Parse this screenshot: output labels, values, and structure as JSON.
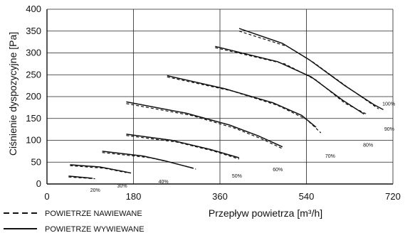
{
  "chart_data": {
    "type": "line",
    "title": "",
    "xlabel": "Przepływ powietrza [m³/h]",
    "ylabel": "Ciśnienie dyspozycyjne [Pa]",
    "xlim": [
      0,
      720
    ],
    "ylim": [
      0,
      400
    ],
    "x_ticks": [
      "0",
      "180",
      "360",
      "540",
      "720"
    ],
    "y_ticks": [
      "0",
      "50",
      "100",
      "150",
      "200",
      "250",
      "300",
      "350",
      "400"
    ],
    "grid": true,
    "legend_placement": "bottom-left",
    "legend": [
      {
        "label": "POWIETRZE NAWIEWANE",
        "style": "dashed"
      },
      {
        "label": "POWIETRZE WYWIEWANE",
        "style": "solid"
      }
    ],
    "series": [
      {
        "label": "20%",
        "solid": [
          [
            45,
            18
          ],
          [
            95,
            13
          ]
        ],
        "dashed": [
          [
            45,
            16
          ],
          [
            100,
            12
          ]
        ],
        "label_at": [
          90,
          -18
        ]
      },
      {
        "label": "30%",
        "solid": [
          [
            48,
            44
          ],
          [
            110,
            39
          ],
          [
            158,
            29
          ],
          [
            175,
            25
          ]
        ],
        "dashed": [
          [
            48,
            42
          ],
          [
            120,
            36
          ],
          [
            165,
            26
          ]
        ],
        "label_at": [
          146,
          -8
        ]
      },
      {
        "label": "40%",
        "solid": [
          [
            115,
            75
          ],
          [
            200,
            64
          ],
          [
            245,
            53
          ],
          [
            305,
            36
          ]
        ],
        "dashed": [
          [
            115,
            72
          ],
          [
            215,
            60
          ],
          [
            260,
            49
          ],
          [
            310,
            34
          ]
        ],
        "label_at": [
          232,
          2
        ]
      },
      {
        "label": "50%",
        "solid": [
          [
            165,
            114
          ],
          [
            260,
            100
          ],
          [
            340,
            79
          ],
          [
            400,
            60
          ]
        ],
        "dashed": [
          [
            165,
            111
          ],
          [
            270,
            96
          ],
          [
            345,
            76
          ],
          [
            400,
            57
          ]
        ],
        "label_at": [
          385,
          15
        ]
      },
      {
        "label": "60%",
        "solid": [
          [
            165,
            188
          ],
          [
            290,
            162
          ],
          [
            380,
            135
          ],
          [
            440,
            110
          ],
          [
            490,
            85
          ]
        ],
        "dashed": [
          [
            165,
            184
          ],
          [
            300,
            157
          ],
          [
            390,
            128
          ],
          [
            445,
            104
          ],
          [
            490,
            81
          ]
        ],
        "label_at": [
          470,
          29
        ]
      },
      {
        "label": "70%",
        "solid": [
          [
            250,
            248
          ],
          [
            370,
            218
          ],
          [
            470,
            186
          ],
          [
            530,
            157
          ],
          [
            560,
            130
          ]
        ],
        "dashed": [
          [
            250,
            245
          ],
          [
            385,
            213
          ],
          [
            480,
            180
          ],
          [
            540,
            148
          ],
          [
            570,
            117
          ]
        ],
        "label_at": [
          579,
          60
        ]
      },
      {
        "label": "80%",
        "solid": [
          [
            350,
            315
          ],
          [
            480,
            280
          ],
          [
            550,
            245
          ],
          [
            615,
            192
          ],
          [
            660,
            160
          ]
        ],
        "dashed": [
          [
            350,
            312
          ],
          [
            495,
            275
          ],
          [
            560,
            238
          ],
          [
            620,
            185
          ],
          [
            665,
            160
          ]
        ],
        "label_at": [
          658,
          85
        ]
      },
      {
        "label": "90%",
        "solid": [
          [
            400,
            356
          ],
          [
            490,
            322
          ],
          [
            545,
            285
          ],
          [
            620,
            225
          ],
          [
            680,
            182
          ],
          [
            700,
            170
          ]
        ],
        "dashed": [
          [
            400,
            350
          ],
          [
            500,
            315
          ],
          [
            555,
            278
          ],
          [
            630,
            218
          ],
          [
            690,
            172
          ]
        ],
        "label_at": [
          702,
          122
        ]
      },
      {
        "label": "100%",
        "solid": [],
        "dashed": [],
        "label_at": [
          698,
          180
        ]
      }
    ]
  }
}
